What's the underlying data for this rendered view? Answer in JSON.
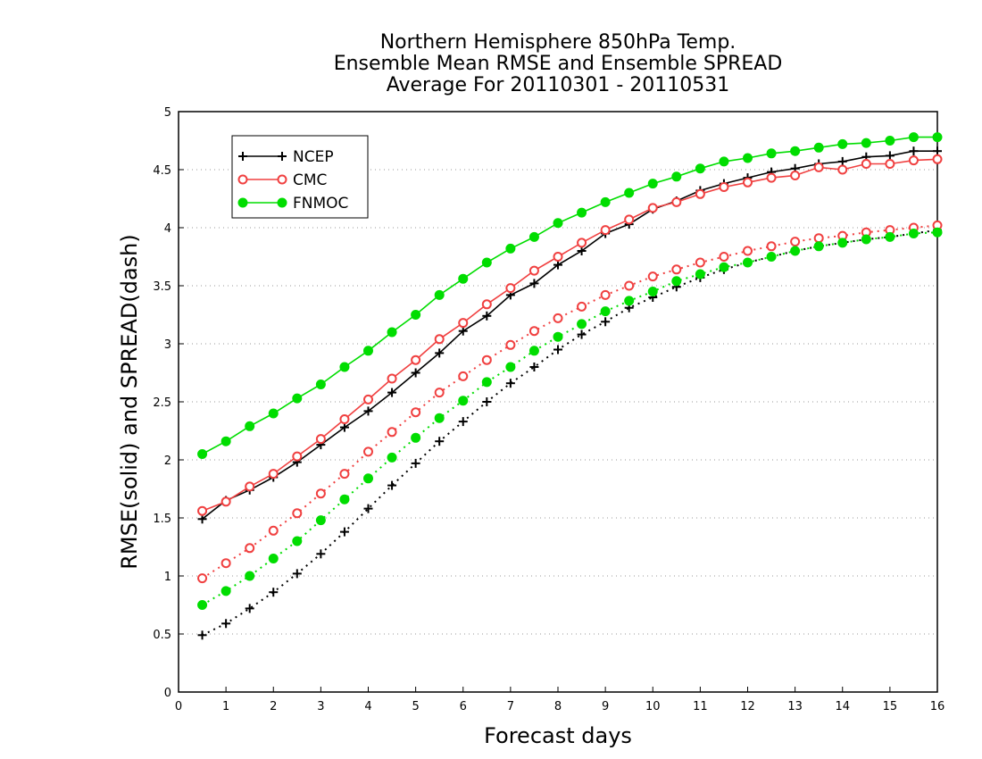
{
  "chart_data": {
    "type": "line",
    "title": [
      "Northern Hemisphere 850hPa Temp.",
      "Ensemble Mean RMSE and Ensemble SPREAD",
      "Average For 20110301 - 20110531"
    ],
    "xlabel": "Forecast days",
    "ylabel": "RMSE(solid) and SPREAD(dash)",
    "xlim": [
      0,
      16
    ],
    "ylim": [
      0,
      5
    ],
    "xticks": [
      0,
      1,
      2,
      3,
      4,
      5,
      6,
      7,
      8,
      9,
      10,
      11,
      12,
      13,
      14,
      15,
      16
    ],
    "yticks": [
      0,
      0.5,
      1,
      1.5,
      2,
      2.5,
      3,
      3.5,
      4,
      4.5,
      5
    ],
    "grid": "horizontal dotted",
    "legend_position": "top-left",
    "x": [
      0.5,
      1,
      1.5,
      2,
      2.5,
      3,
      3.5,
      4,
      4.5,
      5,
      5.5,
      6,
      6.5,
      7,
      7.5,
      8,
      8.5,
      9,
      9.5,
      10,
      10.5,
      11,
      11.5,
      12,
      12.5,
      13,
      13.5,
      14,
      14.5,
      15,
      15.5,
      16
    ],
    "series": [
      {
        "name": "NCEP",
        "kind": "rmse",
        "style": "solid",
        "marker": "plus",
        "color": "#000000",
        "values": [
          1.49,
          1.65,
          1.74,
          1.85,
          1.98,
          2.13,
          2.28,
          2.42,
          2.58,
          2.75,
          2.92,
          3.11,
          3.24,
          3.42,
          3.52,
          3.68,
          3.8,
          3.95,
          4.03,
          4.16,
          4.23,
          4.32,
          4.38,
          4.43,
          4.48,
          4.51,
          4.55,
          4.57,
          4.61,
          4.62,
          4.66,
          4.66
        ]
      },
      {
        "name": "CMC",
        "kind": "rmse",
        "style": "solid",
        "marker": "open-circle",
        "color": "#f04040",
        "values": [
          1.56,
          1.64,
          1.77,
          1.88,
          2.03,
          2.18,
          2.35,
          2.52,
          2.7,
          2.86,
          3.04,
          3.18,
          3.34,
          3.48,
          3.63,
          3.75,
          3.87,
          3.98,
          4.07,
          4.17,
          4.22,
          4.29,
          4.35,
          4.39,
          4.43,
          4.45,
          4.52,
          4.5,
          4.55,
          4.55,
          4.58,
          4.59
        ]
      },
      {
        "name": "FNMOC",
        "kind": "rmse",
        "style": "solid",
        "marker": "filled-circle",
        "color": "#00dd00",
        "values": [
          2.05,
          2.16,
          2.29,
          2.4,
          2.53,
          2.65,
          2.8,
          2.94,
          3.1,
          3.25,
          3.42,
          3.56,
          3.7,
          3.82,
          3.92,
          4.04,
          4.13,
          4.22,
          4.3,
          4.38,
          4.44,
          4.51,
          4.57,
          4.6,
          4.64,
          4.66,
          4.69,
          4.72,
          4.73,
          4.75,
          4.78,
          4.78
        ]
      },
      {
        "name": "NCEP",
        "kind": "spread",
        "style": "dash",
        "marker": "plus",
        "color": "#000000",
        "values": [
          0.49,
          0.59,
          0.72,
          0.86,
          1.02,
          1.19,
          1.38,
          1.58,
          1.78,
          1.97,
          2.16,
          2.33,
          2.5,
          2.66,
          2.8,
          2.95,
          3.08,
          3.19,
          3.31,
          3.4,
          3.49,
          3.57,
          3.64,
          3.7,
          3.75,
          3.8,
          3.84,
          3.87,
          3.9,
          3.92,
          3.95,
          3.98
        ]
      },
      {
        "name": "CMC",
        "kind": "spread",
        "style": "dash",
        "marker": "open-circle",
        "color": "#f04040",
        "values": [
          0.98,
          1.11,
          1.24,
          1.39,
          1.54,
          1.71,
          1.88,
          2.07,
          2.24,
          2.41,
          2.58,
          2.72,
          2.86,
          2.99,
          3.11,
          3.22,
          3.32,
          3.42,
          3.5,
          3.58,
          3.64,
          3.7,
          3.75,
          3.8,
          3.84,
          3.88,
          3.91,
          3.93,
          3.96,
          3.98,
          4.0,
          4.02
        ]
      },
      {
        "name": "FNMOC",
        "kind": "spread",
        "style": "dash",
        "marker": "filled-circle",
        "color": "#00dd00",
        "values": [
          0.75,
          0.87,
          1.0,
          1.15,
          1.3,
          1.48,
          1.66,
          1.84,
          2.02,
          2.19,
          2.36,
          2.51,
          2.67,
          2.8,
          2.94,
          3.06,
          3.17,
          3.28,
          3.37,
          3.45,
          3.54,
          3.6,
          3.66,
          3.7,
          3.75,
          3.8,
          3.84,
          3.87,
          3.9,
          3.92,
          3.95,
          3.96
        ]
      }
    ],
    "legend": [
      {
        "label": "NCEP",
        "marker": "plus",
        "color": "#000000"
      },
      {
        "label": "CMC",
        "marker": "open-circle",
        "color": "#f04040"
      },
      {
        "label": "FNMOC",
        "marker": "filled-circle",
        "color": "#00dd00"
      }
    ]
  }
}
